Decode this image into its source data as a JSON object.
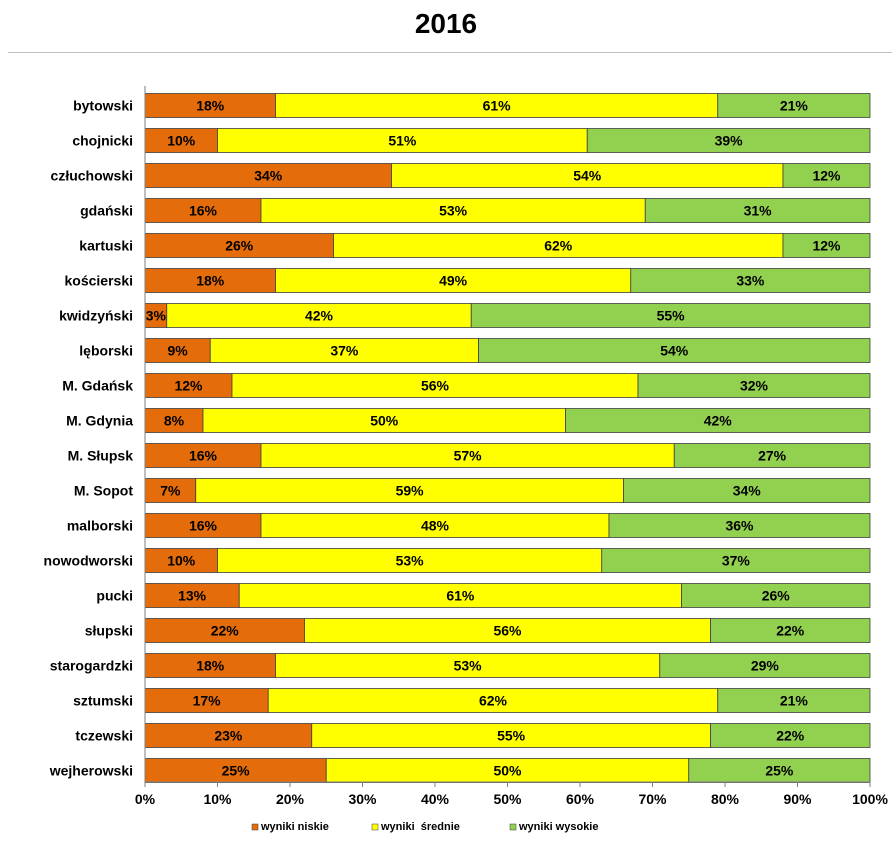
{
  "chart_data": {
    "type": "bar",
    "orientation": "horizontal",
    "stacked": "percent",
    "title": "2016",
    "categories": [
      "bytowski",
      "chojnicki",
      "człuchowski",
      "gdański",
      "kartuski",
      "kościerski",
      "kwidzyński",
      "lęborski",
      "M. Gdańsk",
      "M. Gdynia",
      "M. Słupsk",
      "M. Sopot",
      "malborski",
      "nowodworski",
      "pucki",
      "słupski",
      "starogardzki",
      "sztumski",
      "tczewski",
      "wejherowski"
    ],
    "series": [
      {
        "name": "wyniki niskie",
        "color": "#e46c0a",
        "values": [
          18,
          10,
          34,
          16,
          26,
          18,
          3,
          9,
          12,
          8,
          16,
          7,
          16,
          10,
          13,
          22,
          18,
          17,
          23,
          25
        ]
      },
      {
        "name": "wyniki  średnie",
        "color": "#ffff00",
        "values": [
          61,
          51,
          54,
          53,
          62,
          49,
          42,
          37,
          56,
          50,
          57,
          59,
          48,
          53,
          61,
          56,
          53,
          62,
          55,
          50
        ]
      },
      {
        "name": "wyniki wysokie",
        "color": "#92d050",
        "values": [
          21,
          39,
          12,
          31,
          12,
          33,
          55,
          54,
          32,
          42,
          27,
          34,
          36,
          37,
          26,
          22,
          29,
          21,
          22,
          25
        ]
      }
    ],
    "data_labels": [
      [
        "18%",
        "61%",
        "21%"
      ],
      [
        "10%",
        "51%",
        "39%"
      ],
      [
        "34%",
        "54%",
        "12%"
      ],
      [
        "16%",
        "53%",
        "31%"
      ],
      [
        "26%",
        "62%",
        "12%"
      ],
      [
        "18%",
        "49%",
        "33%"
      ],
      [
        "3%",
        "42%",
        "55%"
      ],
      [
        "9%",
        "37%",
        "54%"
      ],
      [
        "12%",
        "56%",
        "32%"
      ],
      [
        "8%",
        "50%",
        "42%"
      ],
      [
        "16%",
        "57%",
        "27%"
      ],
      [
        "7%",
        "59%",
        "34%"
      ],
      [
        "16%",
        "48%",
        "36%"
      ],
      [
        "10%",
        "53%",
        "37%"
      ],
      [
        "13%",
        "61%",
        "26%"
      ],
      [
        "22%",
        "56%",
        "22%"
      ],
      [
        "18%",
        "53%",
        "29%"
      ],
      [
        "17%",
        "62%",
        "21%"
      ],
      [
        "23%",
        "55%",
        "22%"
      ],
      [
        "25%",
        "50%",
        "25%"
      ]
    ],
    "xticks": [
      "0%",
      "10%",
      "20%",
      "30%",
      "40%",
      "50%",
      "60%",
      "70%",
      "80%",
      "90%",
      "100%"
    ],
    "xlim": [
      0,
      100
    ],
    "grid": false,
    "legend": "bottom"
  }
}
